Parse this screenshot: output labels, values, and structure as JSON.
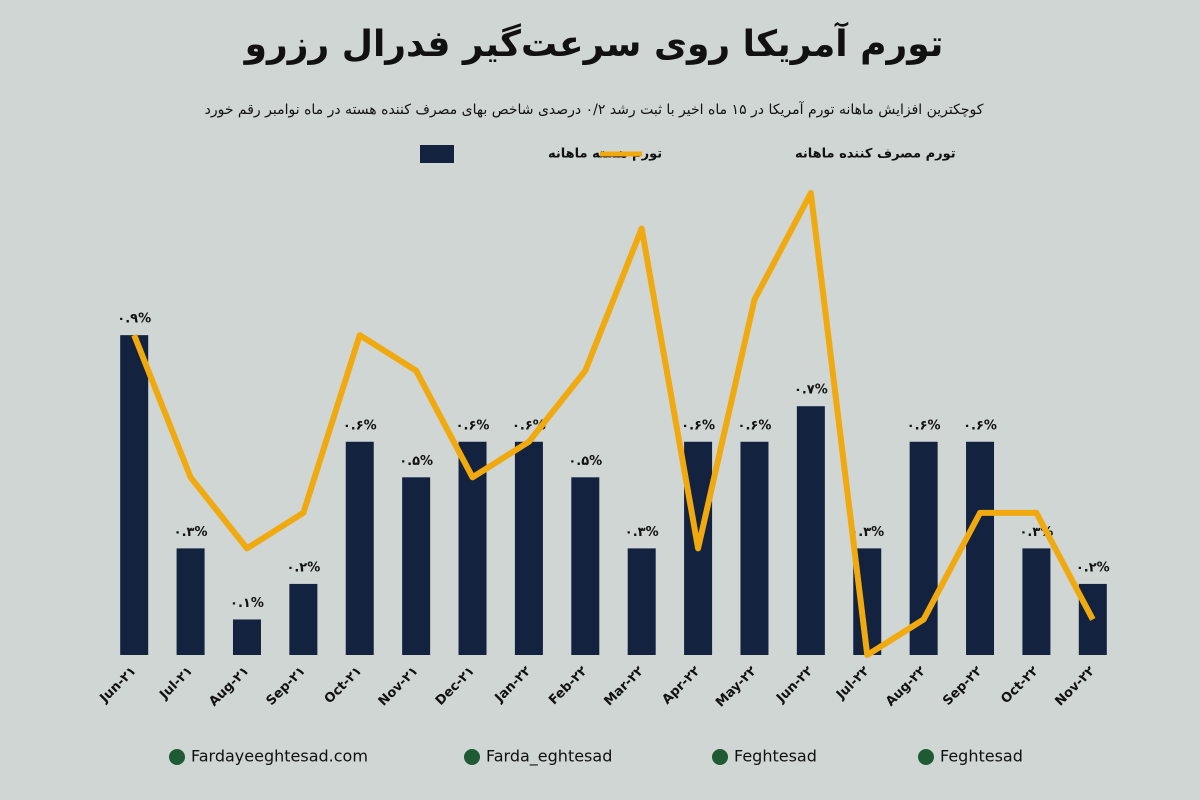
{
  "chart_data": {
    "type": "bar",
    "title": "تورم آمریکا روی سرعت‌گیر فدرال رزرو",
    "subtitle": "کوچکترین افزایش ماهانه تورم آمریکا در ۱۵ ماه اخیر با ثبت رشد ۰/۲ درصدی شاخص بهای مصرف کننده هسته در ماه نوامبر رقم خورد",
    "categories": [
      "Jun-۲۱",
      "Jul-۲۱",
      "Aug-۲۱",
      "Sep-۲۱",
      "Oct-۲۱",
      "Nov-۲۱",
      "Dec-۲۱",
      "Jan-۲۲",
      "Feb-۲۲",
      "Mar-۲۲",
      "Apr-۲۲",
      "May-۲۲",
      "Jun-۲۲",
      "Jul-۲۲",
      "Aug-۲۲",
      "Sep-۲۲",
      "Oct-۲۲",
      "Nov-۲۲"
    ],
    "series": [
      {
        "name": "تورم هسته ماهانه",
        "type": "bar",
        "color": "#13233f",
        "values": [
          0.9,
          0.3,
          0.1,
          0.2,
          0.6,
          0.5,
          0.6,
          0.6,
          0.5,
          0.3,
          0.6,
          0.6,
          0.7,
          0.3,
          0.6,
          0.6,
          0.3,
          0.2
        ],
        "value_labels": [
          "۰.۹%",
          "۰.۳%",
          "۰.۱%",
          "۰.۲%",
          "۰.۶%",
          "۰.۵%",
          "۰.۶%",
          "۰.۶%",
          "۰.۵%",
          "۰.۳%",
          "۰.۶%",
          "۰.۶%",
          "۰.۷%",
          "۰.۳%",
          "۰.۶%",
          "۰.۶%",
          "۰.۳%",
          "۰.۲%"
        ]
      },
      {
        "name": "تورم مصرف کننده ماهانه",
        "type": "line",
        "color": "#f0a90f",
        "values": [
          0.9,
          0.5,
          0.3,
          0.4,
          0.9,
          0.8,
          0.5,
          0.6,
          0.8,
          1.2,
          0.3,
          1.0,
          1.3,
          0.0,
          0.1,
          0.4,
          0.4,
          0.1
        ]
      }
    ],
    "ylim": [
      0,
      1.3
    ]
  },
  "footer": [
    "Fardayeeghtesad.com",
    "Farda_eghtesad",
    "Feghtesad",
    "Feghtesad"
  ]
}
